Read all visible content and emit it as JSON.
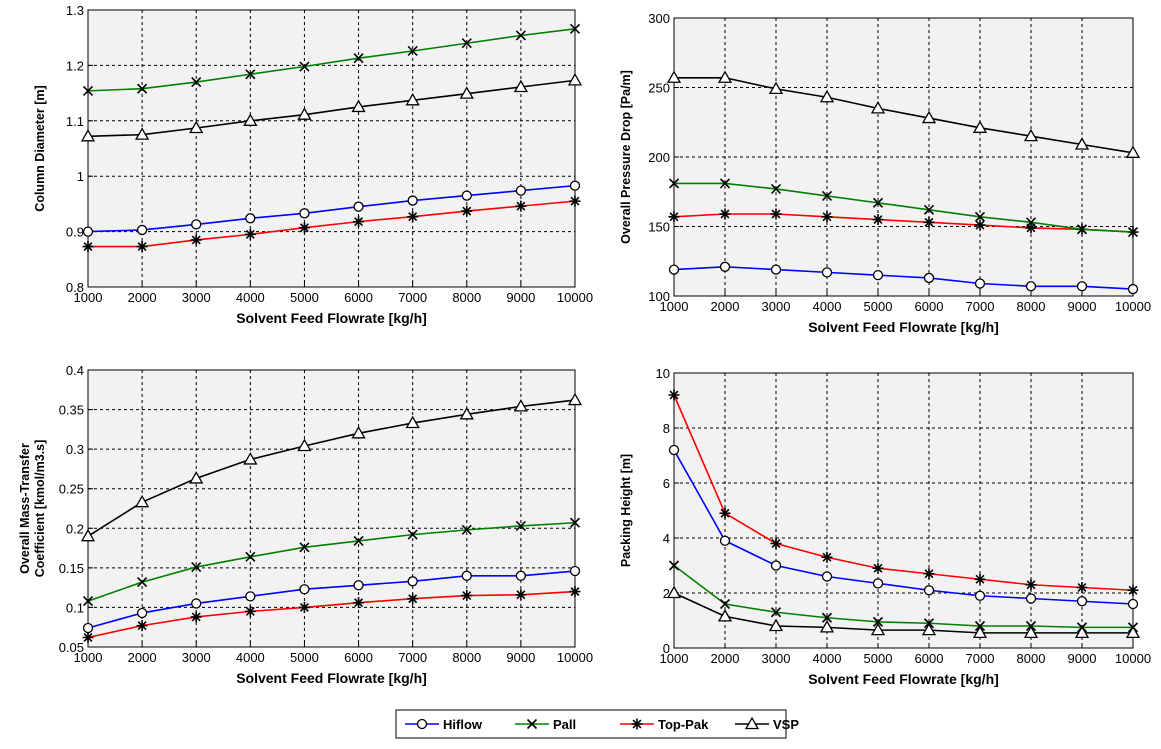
{
  "legend": {
    "placement": "bottom-center",
    "entries": [
      {
        "name": "Hiflow",
        "color": "#0000ff",
        "marker": "circle"
      },
      {
        "name": "Pall",
        "color": "#008000",
        "marker": "x"
      },
      {
        "name": "Top-Pak",
        "color": "#ff0000",
        "marker": "star"
      },
      {
        "name": "VSP",
        "color": "#000000",
        "marker": "triangle"
      }
    ]
  },
  "chart_data": [
    {
      "type": "line",
      "xlabel": "Solvent Feed Flowrate [kg/h]",
      "ylabel": [
        "Column Diameter [m]"
      ],
      "xlim": [
        1000,
        10000
      ],
      "ylim": [
        0.8,
        1.3
      ],
      "xticks": [
        "1000",
        "2000",
        "3000",
        "4000",
        "5000",
        "6000",
        "7000",
        "8000",
        "9000",
        "10000"
      ],
      "yticks": [
        "0.8",
        "0.9",
        "1",
        "1.1",
        "1.2",
        "1.3"
      ],
      "grid": true,
      "x": [
        1000,
        2000,
        3000,
        4000,
        5000,
        6000,
        7000,
        8000,
        9000,
        10000
      ],
      "series": [
        {
          "name": "Hiflow",
          "values": [
            0.9,
            0.903,
            0.913,
            0.924,
            0.933,
            0.945,
            0.956,
            0.965,
            0.974,
            0.983
          ]
        },
        {
          "name": "Pall",
          "values": [
            1.154,
            1.158,
            1.17,
            1.184,
            1.198,
            1.213,
            1.226,
            1.24,
            1.254,
            1.266
          ]
        },
        {
          "name": "Top-Pak",
          "values": [
            0.873,
            0.873,
            0.885,
            0.895,
            0.907,
            0.918,
            0.927,
            0.937,
            0.946,
            0.955
          ]
        },
        {
          "name": "VSP",
          "values": [
            1.072,
            1.075,
            1.087,
            1.1,
            1.111,
            1.125,
            1.137,
            1.149,
            1.161,
            1.173
          ]
        }
      ]
    },
    {
      "type": "line",
      "xlabel": "Solvent Feed Flowrate [kg/h]",
      "ylabel": [
        "Overall Pressure Drop [Pa/m]"
      ],
      "xlim": [
        1000,
        10000
      ],
      "ylim": [
        100,
        300
      ],
      "xticks": [
        "1000",
        "2000",
        "3000",
        "4000",
        "5000",
        "6000",
        "7000",
        "8000",
        "9000",
        "10000"
      ],
      "yticks": [
        "100",
        "150",
        "200",
        "250",
        "300"
      ],
      "grid": true,
      "x": [
        1000,
        2000,
        3000,
        4000,
        5000,
        6000,
        7000,
        8000,
        9000,
        10000
      ],
      "series": [
        {
          "name": "Hiflow",
          "values": [
            119,
            121,
            119,
            117,
            115,
            113,
            109,
            107,
            107,
            105
          ]
        },
        {
          "name": "Pall",
          "values": [
            181,
            181,
            177,
            172,
            167,
            162,
            157,
            153,
            148,
            146
          ]
        },
        {
          "name": "Top-Pak",
          "values": [
            157,
            159,
            159,
            157,
            155,
            153,
            151,
            149,
            148,
            146
          ]
        },
        {
          "name": "VSP",
          "values": [
            257,
            257,
            249,
            243,
            235,
            228,
            221,
            215,
            209,
            203
          ]
        }
      ]
    },
    {
      "type": "line",
      "xlabel": "Solvent Feed Flowrate [kg/h]",
      "ylabel": [
        "Overall Mass-Transfer",
        "Coefficient [kmol/m3.s]"
      ],
      "xlim": [
        1000,
        10000
      ],
      "ylim": [
        0.05,
        0.4
      ],
      "xticks": [
        "1000",
        "2000",
        "3000",
        "4000",
        "5000",
        "6000",
        "7000",
        "8000",
        "9000",
        "10000"
      ],
      "yticks": [
        "0.05",
        "0.1",
        "0.15",
        "0.2",
        "0.25",
        "0.3",
        "0.35",
        "0.4"
      ],
      "grid": true,
      "x": [
        1000,
        2000,
        3000,
        4000,
        5000,
        6000,
        7000,
        8000,
        9000,
        10000
      ],
      "series": [
        {
          "name": "Hiflow",
          "values": [
            0.074,
            0.093,
            0.105,
            0.114,
            0.123,
            0.128,
            0.133,
            0.14,
            0.14,
            0.146
          ]
        },
        {
          "name": "Pall",
          "values": [
            0.108,
            0.132,
            0.151,
            0.164,
            0.176,
            0.184,
            0.192,
            0.198,
            0.203,
            0.207
          ]
        },
        {
          "name": "Top-Pak",
          "values": [
            0.062,
            0.077,
            0.088,
            0.095,
            0.1,
            0.106,
            0.111,
            0.115,
            0.116,
            0.12
          ]
        },
        {
          "name": "VSP",
          "values": [
            0.19,
            0.233,
            0.263,
            0.287,
            0.304,
            0.32,
            0.333,
            0.344,
            0.354,
            0.362
          ]
        }
      ]
    },
    {
      "type": "line",
      "xlabel": "Solvent Feed Flowrate [kg/h]",
      "ylabel": [
        "Packing Height [m]"
      ],
      "xlim": [
        1000,
        10000
      ],
      "ylim": [
        0,
        10
      ],
      "xticks": [
        "1000",
        "2000",
        "3000",
        "4000",
        "5000",
        "6000",
        "7000",
        "8000",
        "9000",
        "10000"
      ],
      "yticks": [
        "0",
        "2",
        "4",
        "6",
        "8",
        "10"
      ],
      "grid": true,
      "x": [
        1000,
        2000,
        3000,
        4000,
        5000,
        6000,
        7000,
        8000,
        9000,
        10000
      ],
      "series": [
        {
          "name": "Hiflow",
          "values": [
            7.2,
            3.9,
            3.0,
            2.6,
            2.35,
            2.1,
            1.9,
            1.8,
            1.7,
            1.6
          ]
        },
        {
          "name": "Pall",
          "values": [
            3.0,
            1.6,
            1.3,
            1.1,
            0.95,
            0.9,
            0.8,
            0.8,
            0.75,
            0.75
          ]
        },
        {
          "name": "Top-Pak",
          "values": [
            9.2,
            4.9,
            3.8,
            3.3,
            2.9,
            2.7,
            2.5,
            2.3,
            2.2,
            2.1
          ]
        },
        {
          "name": "VSP",
          "values": [
            2.0,
            1.15,
            0.8,
            0.75,
            0.65,
            0.65,
            0.55,
            0.55,
            0.55,
            0.55
          ]
        }
      ]
    }
  ]
}
